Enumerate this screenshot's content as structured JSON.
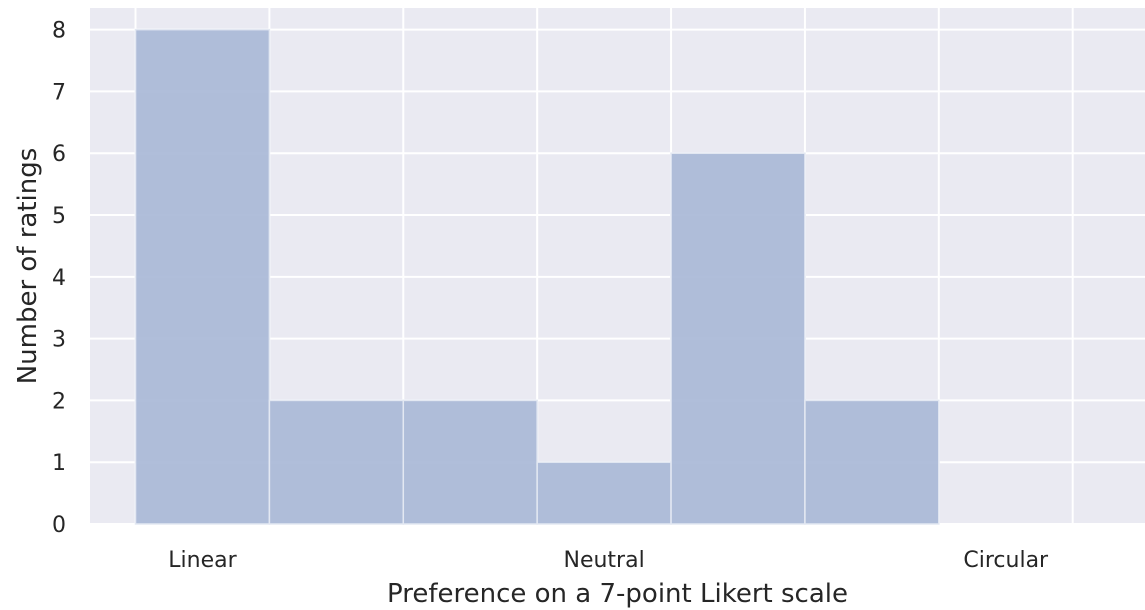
{
  "chart_data": {
    "type": "bar",
    "title": "",
    "xlabel": "Preference on a 7-point Likert scale",
    "ylabel": "Number of ratings",
    "x_tick_labels": [
      {
        "x": 1,
        "label": "Linear"
      },
      {
        "x": 4,
        "label": "Neutral"
      },
      {
        "x": 7,
        "label": "Circular"
      }
    ],
    "bins": [
      {
        "from": 0.5,
        "to": 1.5,
        "value": 8
      },
      {
        "from": 1.5,
        "to": 2.5,
        "value": 2
      },
      {
        "from": 2.5,
        "to": 3.5,
        "value": 2
      },
      {
        "from": 3.5,
        "to": 4.5,
        "value": 1
      },
      {
        "from": 4.5,
        "to": 5.5,
        "value": 6
      },
      {
        "from": 5.5,
        "to": 6.5,
        "value": 2
      }
    ],
    "xlim": [
      0.16,
      8.04
    ],
    "ylim": [
      0,
      8.35
    ],
    "y_ticks": [
      0,
      1,
      2,
      3,
      4,
      5,
      6,
      7,
      8
    ],
    "x_gridlines": [
      0.5,
      1.5,
      2.5,
      3.5,
      4.5,
      5.5,
      6.5,
      7.5
    ],
    "grid": true,
    "bar_color": "#a9b8d7",
    "background_color": "#eaeaf2",
    "grid_color": "#ffffff"
  }
}
